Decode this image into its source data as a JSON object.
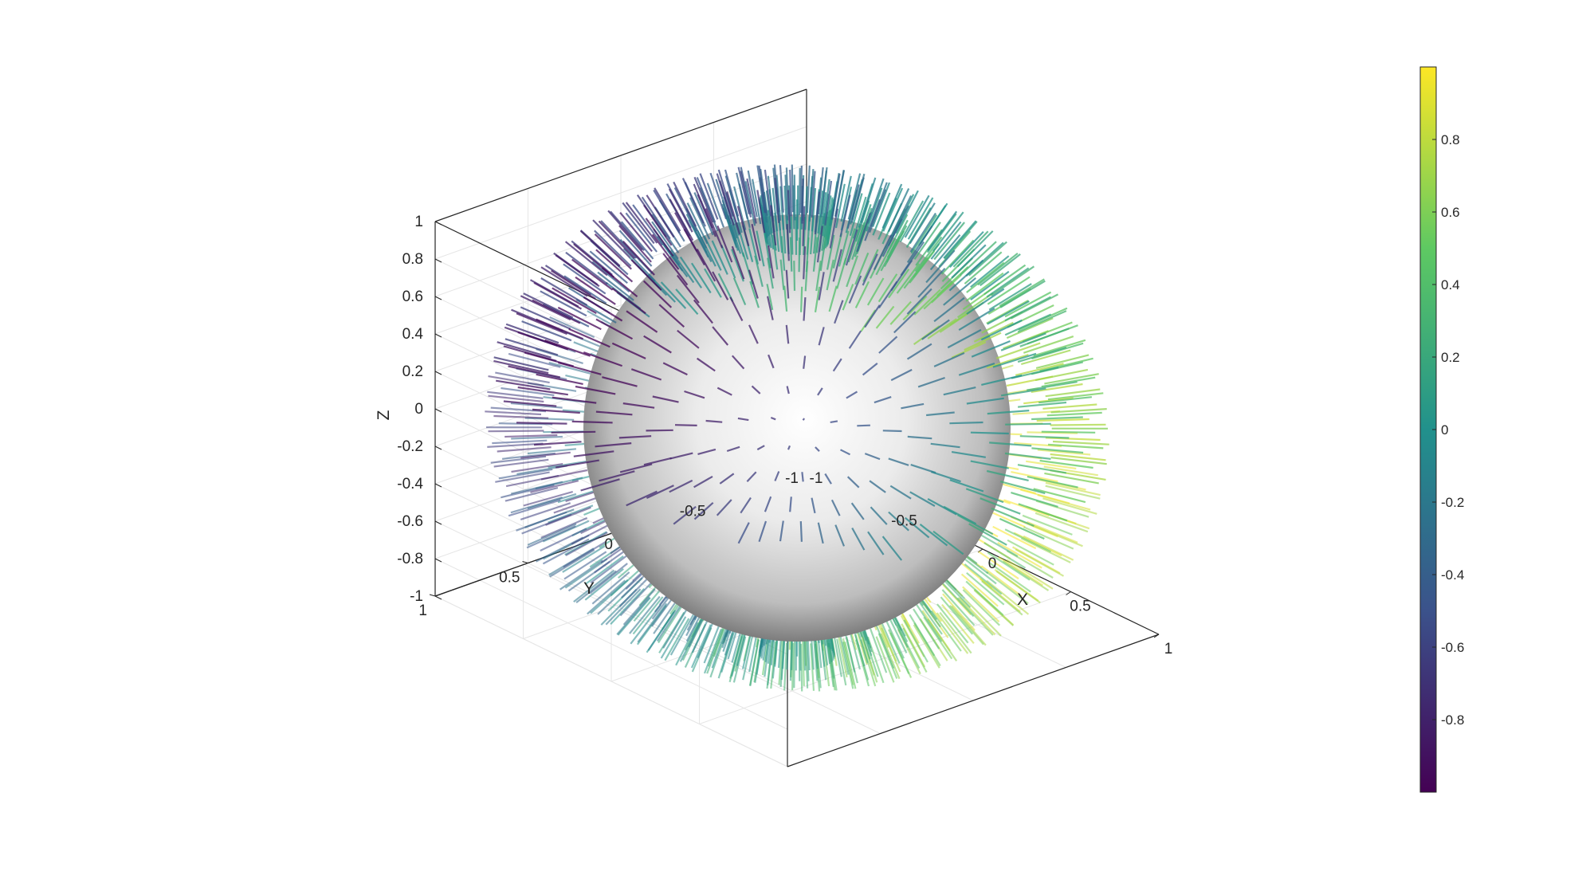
{
  "chart_data": {
    "type": "3d-quiver",
    "title": "",
    "xlabel": "X",
    "ylabel": "Y",
    "zlabel": "Z",
    "xlim": [
      -1,
      1
    ],
    "ylim": [
      -1,
      1
    ],
    "zlim": [
      -1,
      1
    ],
    "x_ticks": [
      "-1",
      "-0.5",
      "0",
      "0.5",
      "1"
    ],
    "y_ticks": [
      "-1",
      "-0.5",
      "0",
      "0.5",
      "1"
    ],
    "z_ticks": [
      "-1",
      "-0.8",
      "-0.6",
      "-0.4",
      "-0.2",
      "0",
      "0.2",
      "0.4",
      "0.6",
      "0.8",
      "1"
    ],
    "surface": {
      "shape": "unit sphere",
      "colormap": "gray"
    },
    "vectors": {
      "field": "outward surface normals",
      "color_by": "x-component"
    },
    "grid": true,
    "view": {
      "azimuth_deg": -37.5,
      "elevation_deg": 30
    },
    "colorbar": {
      "colormap": "viridis",
      "range": [
        -1,
        1
      ],
      "ticks": [
        "-0.8",
        "-0.6",
        "-0.4",
        "-0.2",
        "0",
        "0.2",
        "0.4",
        "0.6",
        "0.8"
      ],
      "placement": "right",
      "colors": [
        "#440154",
        "#3b528b",
        "#21918c",
        "#5ec962",
        "#fde725"
      ]
    }
  }
}
